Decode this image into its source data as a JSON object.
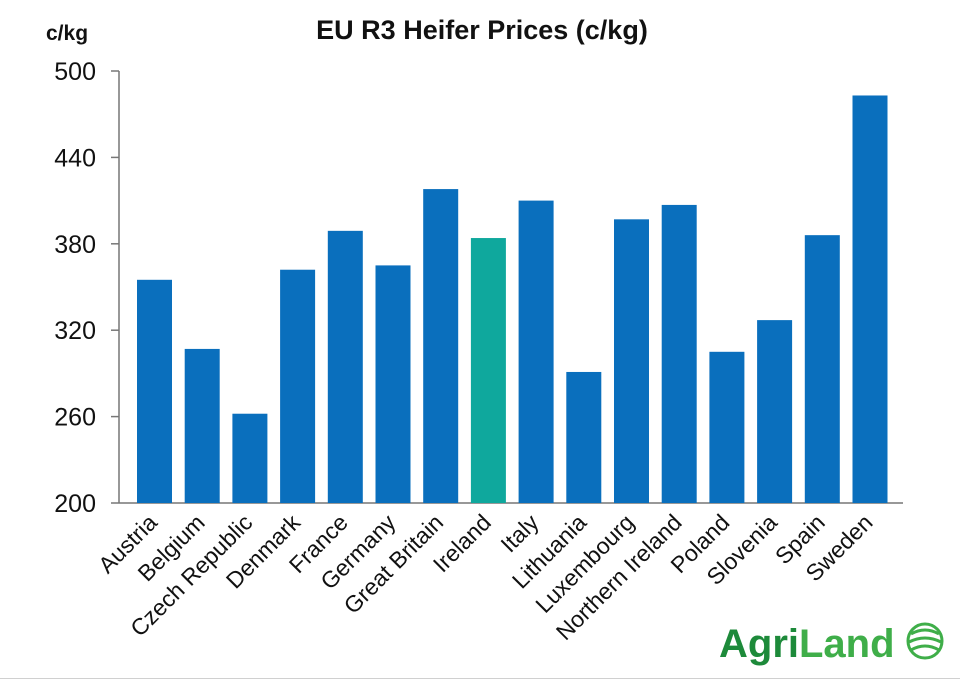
{
  "chart_data": {
    "type": "bar",
    "title": "EU R3 Heifer Prices (c/kg)",
    "ylabel": "c/kg",
    "xlabel": "",
    "ylim": [
      200,
      500
    ],
    "yticks": [
      200,
      260,
      320,
      380,
      440,
      500
    ],
    "grid": false,
    "legend": "none",
    "categories": [
      "Austria",
      "Belgium",
      "Czech Republic",
      "Denmark",
      "France",
      "Germany",
      "Great Britain",
      "Ireland",
      "Italy",
      "Lithuania",
      "Luxembourg",
      "Northern Ireland",
      "Poland",
      "Slovenia",
      "Spain",
      "Sweden"
    ],
    "values": [
      355,
      307,
      262,
      362,
      389,
      365,
      418,
      384,
      410,
      291,
      397,
      407,
      305,
      327,
      386,
      483
    ],
    "highlight": "Ireland",
    "colors": {
      "bar": "#0a6fbd",
      "highlight": "#0fa89d",
      "axis": "#777777"
    }
  },
  "brand": {
    "part1": "Agri",
    "part2": "Land",
    "color1": "#1d8a3a",
    "color2": "#3fae49"
  }
}
